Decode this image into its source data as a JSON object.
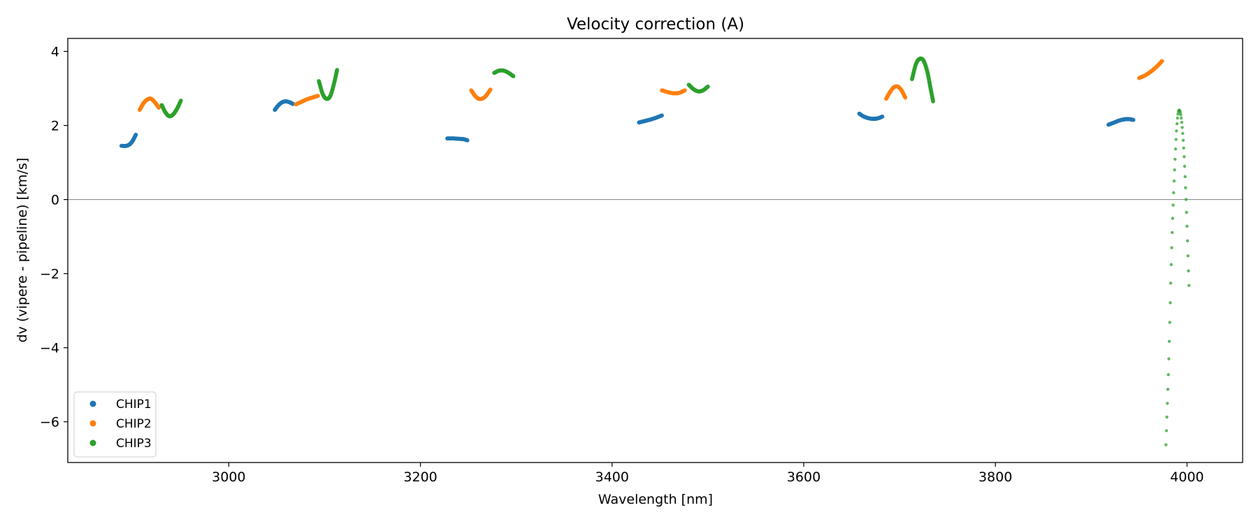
{
  "chart_data": {
    "type": "scatter",
    "title": "Velocity correction (A)",
    "xlabel": "Wavelength [nm]",
    "ylabel": "dv (vipere - pipeline) [km/s]",
    "xlim": [
      2832,
      4058
    ],
    "ylim": [
      -7.1,
      4.35
    ],
    "xticks": [
      3000,
      3200,
      3400,
      3600,
      3800,
      4000
    ],
    "yticks": [
      4,
      2,
      0,
      -2,
      -4,
      -6
    ],
    "xtick_labels": [
      "3000",
      "3200",
      "3400",
      "3600",
      "3800",
      "4000"
    ],
    "ytick_labels": [
      "4",
      "2",
      "0",
      "−2",
      "−4",
      "−6"
    ],
    "zero_line": 0,
    "grid": false,
    "legend_position": "lower-left",
    "legend": [
      "CHIP1",
      "CHIP2",
      "CHIP3"
    ],
    "series": [
      {
        "name": "CHIP1",
        "color": "#1f77b4",
        "segments": [
          {
            "x": [
              2888,
              2893,
              2897,
              2900,
              2903
            ],
            "y": [
              1.45,
              1.45,
              1.5,
              1.6,
              1.75
            ]
          },
          {
            "x": [
              3048,
              3052,
              3056,
              3060,
              3064,
              3067
            ],
            "y": [
              2.42,
              2.55,
              2.63,
              2.65,
              2.62,
              2.58
            ]
          },
          {
            "x": [
              3228,
              3234,
              3240,
              3245,
              3249
            ],
            "y": [
              1.65,
              1.65,
              1.64,
              1.63,
              1.6
            ]
          },
          {
            "x": [
              3428,
              3434,
              3440,
              3446,
              3452
            ],
            "y": [
              2.08,
              2.12,
              2.16,
              2.21,
              2.27
            ]
          },
          {
            "x": [
              3658,
              3662,
              3667,
              3672,
              3677,
              3682
            ],
            "y": [
              2.32,
              2.25,
              2.2,
              2.18,
              2.19,
              2.24
            ]
          },
          {
            "x": [
              3918,
              3924,
              3930,
              3936,
              3940,
              3944
            ],
            "y": [
              2.02,
              2.08,
              2.14,
              2.17,
              2.17,
              2.15
            ]
          }
        ]
      },
      {
        "name": "CHIP2",
        "color": "#ff7f0e",
        "segments": [
          {
            "x": [
              2907,
              2911,
              2915,
              2919,
              2923,
              2927
            ],
            "y": [
              2.42,
              2.6,
              2.7,
              2.72,
              2.62,
              2.48
            ]
          },
          {
            "x": [
              3070,
              3076,
              3082,
              3088,
              3093
            ],
            "y": [
              2.57,
              2.64,
              2.71,
              2.76,
              2.8
            ]
          },
          {
            "x": [
              3253,
              3257,
              3261,
              3265,
              3269,
              3273
            ],
            "y": [
              2.95,
              2.8,
              2.72,
              2.73,
              2.82,
              2.97
            ]
          },
          {
            "x": [
              3452,
              3458,
              3464,
              3470,
              3476
            ],
            "y": [
              2.95,
              2.9,
              2.87,
              2.88,
              2.95
            ]
          },
          {
            "x": [
              3686,
              3690,
              3694,
              3698,
              3702,
              3706
            ],
            "y": [
              2.72,
              2.9,
              3.03,
              3.05,
              2.95,
              2.75
            ]
          },
          {
            "x": [
              3950,
              3956,
              3962,
              3968,
              3974
            ],
            "y": [
              3.28,
              3.35,
              3.45,
              3.58,
              3.74
            ]
          }
        ]
      },
      {
        "name": "CHIP3",
        "color": "#2ca02c",
        "segments": [
          {
            "x": [
              2930,
              2934,
              2938,
              2942,
              2946,
              2950
            ],
            "y": [
              2.55,
              2.35,
              2.25,
              2.3,
              2.45,
              2.67
            ]
          },
          {
            "x": [
              3094,
              3098,
              3102,
              3106,
              3110,
              3113
            ],
            "y": [
              3.2,
              2.85,
              2.72,
              2.8,
              3.15,
              3.5
            ]
          },
          {
            "x": [
              3277,
              3282,
              3287,
              3292,
              3297
            ],
            "y": [
              3.42,
              3.48,
              3.48,
              3.42,
              3.33
            ]
          },
          {
            "x": [
              3480,
              3485,
              3490,
              3495,
              3500
            ],
            "y": [
              3.1,
              2.98,
              2.92,
              2.95,
              3.05
            ]
          },
          {
            "x": [
              3713,
              3717,
              3721,
              3725,
              3729,
              3732,
              3735
            ],
            "y": [
              3.25,
              3.65,
              3.8,
              3.75,
              3.45,
              3.05,
              2.65
            ]
          },
          {
            "x": [
              3978,
              3981,
              3984,
              3987,
              3990,
              3993,
              3996,
              3999,
              4002
            ],
            "y": [
              -6.62,
              -4.3,
              -1.3,
              0.8,
              2.2,
              2.35,
              1.6,
              0.0,
              -2.32
            ]
          }
        ]
      }
    ]
  }
}
